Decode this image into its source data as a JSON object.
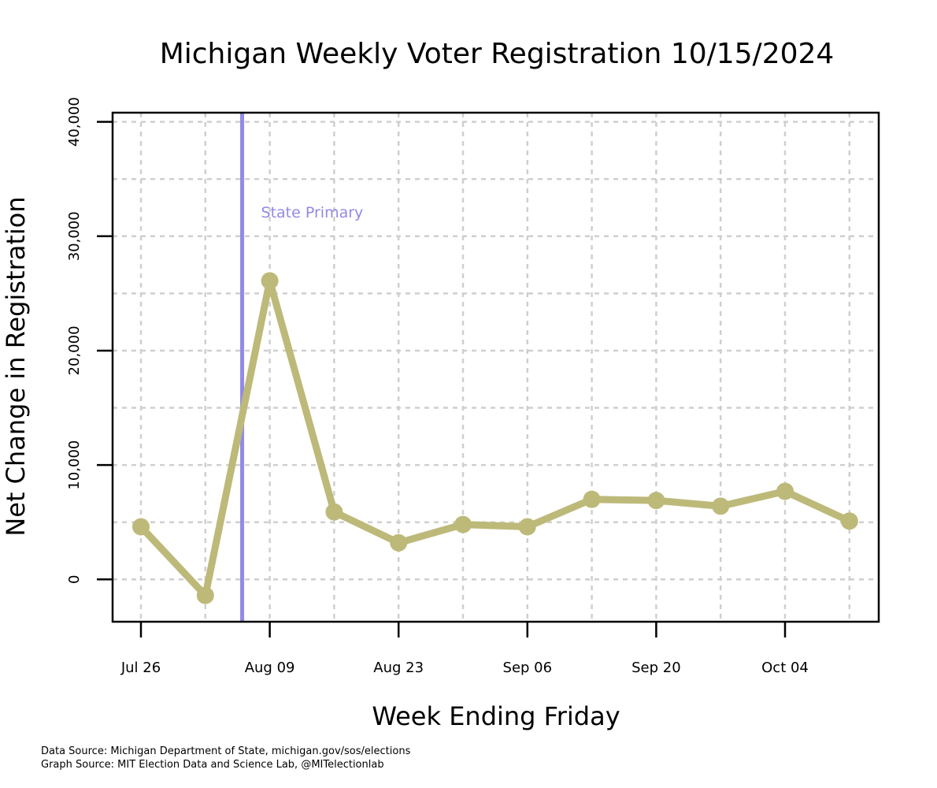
{
  "chart_data": {
    "type": "line",
    "title": "Michigan Weekly Voter Registration 10/15/2024",
    "xlabel": "Week Ending Friday",
    "ylabel": "Net Change in Registration",
    "x_tick_labels": [
      "Jul 26",
      "Aug 09",
      "Aug 23",
      "Sep 06",
      "Sep 20",
      "Oct 04"
    ],
    "y_tick_labels": [
      "0",
      "10,000",
      "20,000",
      "30,000",
      "40,000"
    ],
    "y_ticks": [
      0,
      10000,
      20000,
      30000,
      40000
    ],
    "ylim": [
      -3700,
      40800
    ],
    "grid": true,
    "x": [
      "Jul 26",
      "Aug 02",
      "Aug 09",
      "Aug 16",
      "Aug 23",
      "Aug 30",
      "Sep 06",
      "Sep 13",
      "Sep 20",
      "Sep 27",
      "Oct 04",
      "Oct 11"
    ],
    "series": [
      {
        "values": [
          4600,
          -1400,
          26100,
          5900,
          3200,
          4800,
          4600,
          7000,
          6900,
          6400,
          7700,
          5100
        ],
        "color": "#bdb979"
      }
    ],
    "annotations": [
      {
        "text": "State Primary",
        "date": "Aug 06",
        "color": "#918ae6"
      }
    ]
  },
  "footer": {
    "data_source": "Data Source: Michigan Department of State, michigan.gov/sos/elections",
    "graph_source": "Graph Source: MIT Election Data and Science Lab, @MITelectionlab"
  }
}
